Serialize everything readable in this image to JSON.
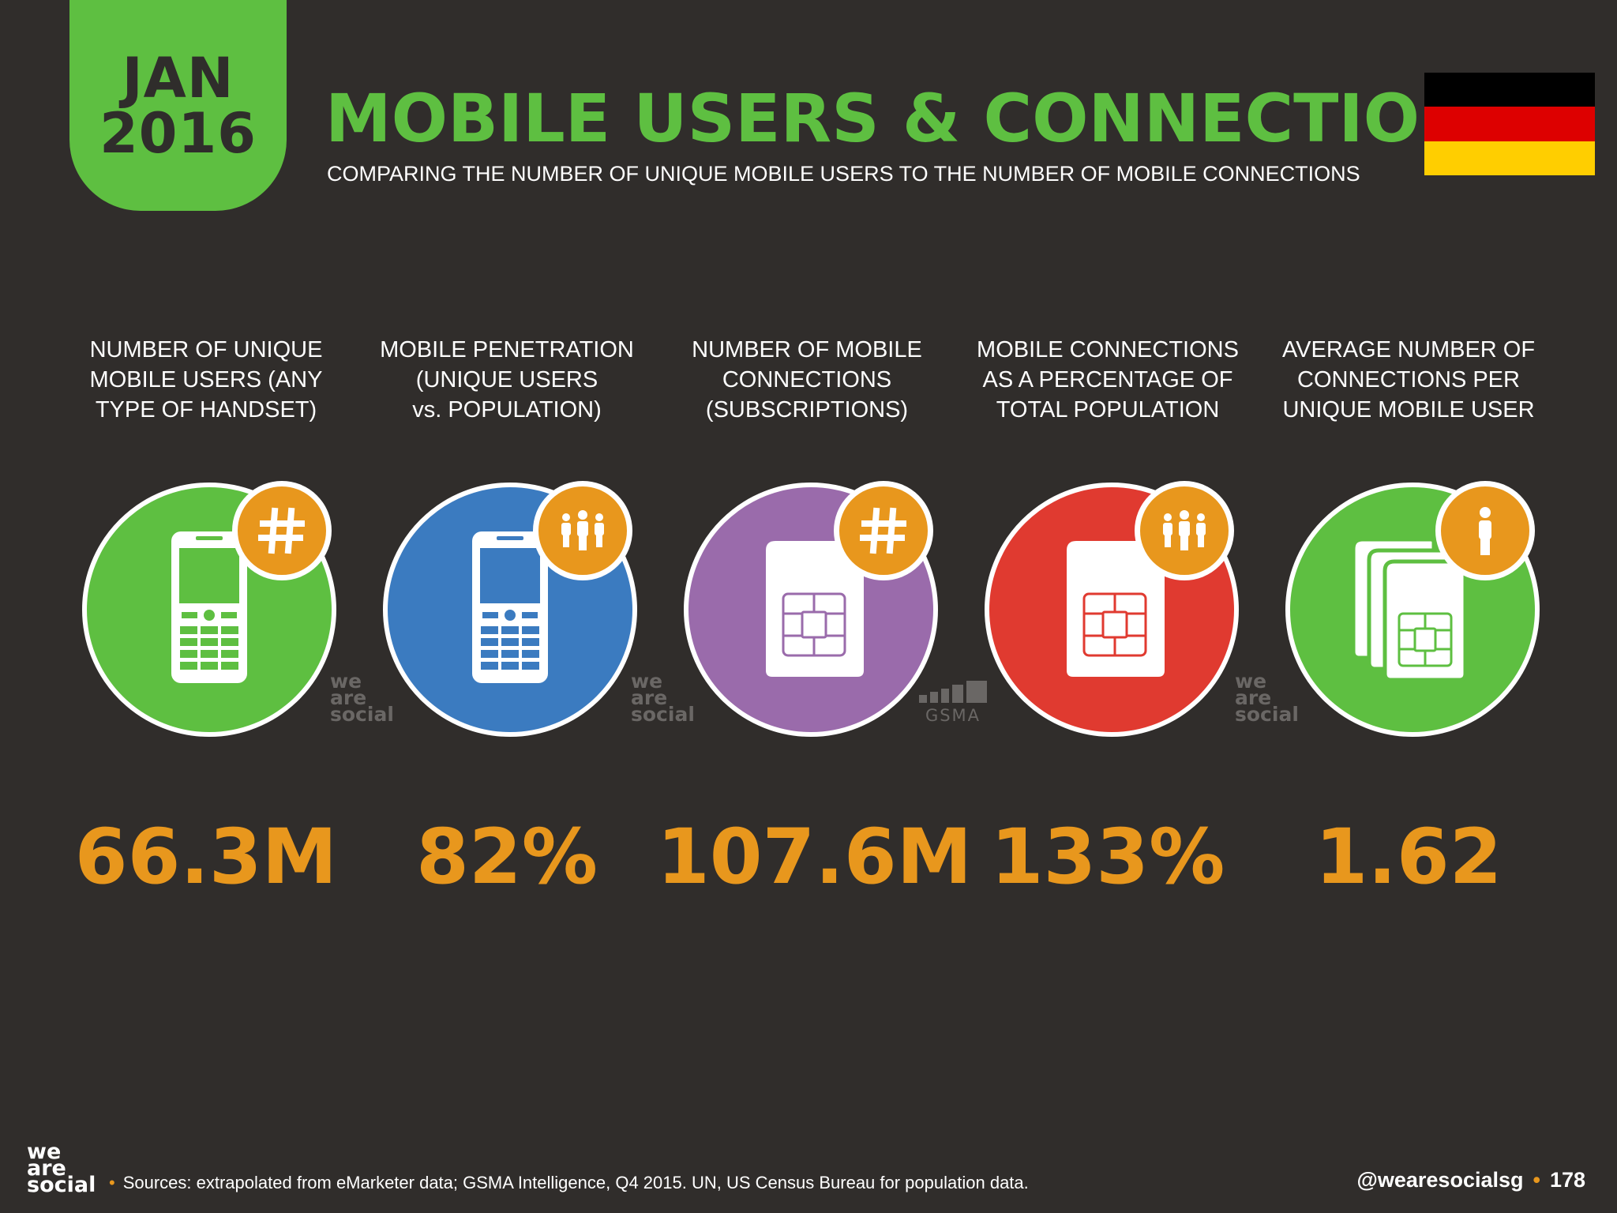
{
  "header": {
    "month": "JAN",
    "year": "2016",
    "title": "MOBILE USERS & CONNECTIONS",
    "subtitle": "COMPARING THE NUMBER OF UNIQUE MOBILE USERS TO THE NUMBER OF MOBILE CONNECTIONS"
  },
  "flag": {
    "colors": [
      "#000000",
      "#dd0000",
      "#ffce00"
    ]
  },
  "stats": [
    {
      "label": [
        "NUMBER OF UNIQUE",
        "MOBILE USERS (ANY",
        "TYPE OF HANDSET)"
      ],
      "value": "66.3M",
      "color": "#5ebf41",
      "main_icon": "mobile-phone-icon",
      "badge_icon": "hash-icon"
    },
    {
      "label": [
        "MOBILE PENETRATION",
        "(UNIQUE USERS",
        "vs. POPULATION)"
      ],
      "value": "82%",
      "color": "#3b7bc0",
      "main_icon": "mobile-phone-icon",
      "badge_icon": "people-icon"
    },
    {
      "label": [
        "NUMBER OF MOBILE",
        "CONNECTIONS",
        "(SUBSCRIPTIONS)"
      ],
      "value": "107.6M",
      "color": "#9a6bab",
      "main_icon": "sim-card-icon",
      "badge_icon": "hash-icon"
    },
    {
      "label": [
        "MOBILE CONNECTIONS",
        "AS A PERCENTAGE OF",
        "TOTAL POPULATION"
      ],
      "value": "133%",
      "color": "#e03a30",
      "main_icon": "sim-card-icon",
      "badge_icon": "people-icon"
    },
    {
      "label": [
        "AVERAGE NUMBER OF",
        "CONNECTIONS PER",
        "UNIQUE MOBILE USER"
      ],
      "value": "1.62",
      "color": "#5ebf41",
      "main_icon": "sim-cards-stack-icon",
      "badge_icon": "person-icon"
    }
  ],
  "watermarks": {
    "we_are_social": [
      "we",
      "are",
      "social"
    ],
    "gsma": "GSMA"
  },
  "footer": {
    "logo": [
      "we",
      "are",
      "social"
    ],
    "bullet": "•",
    "sources": "Sources: extrapolated from eMarketer data; GSMA Intelligence, Q4 2015. UN, US Census Bureau for population data.",
    "handle": "@wearesocialsg",
    "page_number": "178"
  }
}
